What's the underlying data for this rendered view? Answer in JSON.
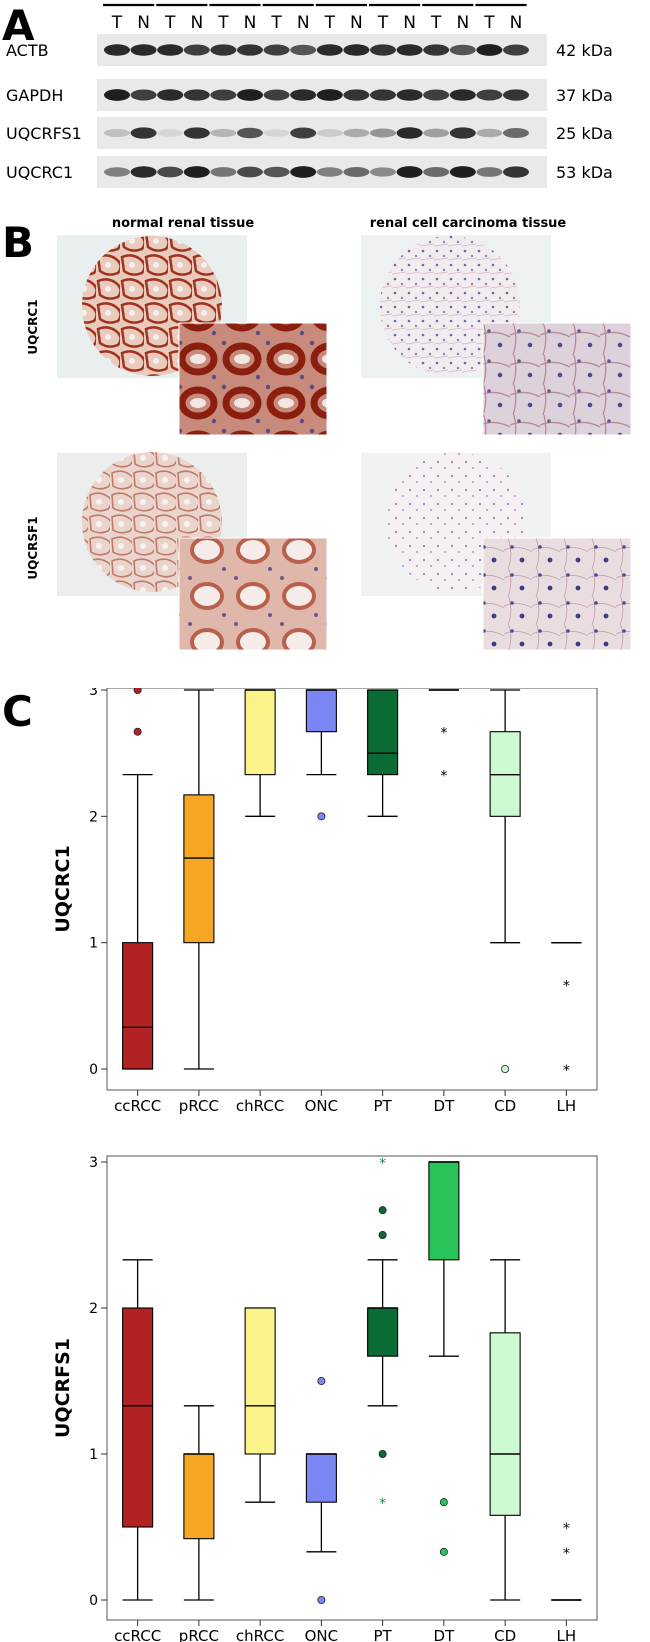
{
  "panels": {
    "a": "A",
    "b": "B",
    "c": "C"
  },
  "blot": {
    "lane_labels": [
      "T",
      "N",
      "T",
      "N",
      "T",
      "N",
      "T",
      "N",
      "T",
      "N",
      "T",
      "N",
      "T",
      "N",
      "T",
      "N"
    ],
    "rows": [
      {
        "protein": "ACTB",
        "size": "42 kDa"
      },
      {
        "protein": "GAPDH",
        "size": "37 kDa"
      },
      {
        "protein": "UQCRFS1",
        "size": "25 kDa"
      },
      {
        "protein": "UQCRC1",
        "size": "53 kDa"
      }
    ]
  },
  "ihc": {
    "col_titles": [
      "normal renal tissue",
      "renal cell carcinoma tissue"
    ],
    "row_labels": [
      "UQCRC1",
      "UQCRSF1"
    ]
  },
  "chart_data": [
    {
      "type": "box",
      "ylabel": "UQCRC1",
      "ylim": [
        0,
        3
      ],
      "yticks": [
        0,
        1,
        2,
        3
      ],
      "categories": [
        "ccRCC",
        "pRCC",
        "chRCC",
        "ONC",
        "PT",
        "DT",
        "CD",
        "LH"
      ],
      "colors": [
        "#b22222",
        "#f5a623",
        "#fbf38a",
        "#7b86f5",
        "#0a6b35",
        "#28c45a",
        "#cdf9d0",
        "#ffffff"
      ],
      "boxes": [
        {
          "min": 0,
          "q1": 0,
          "median": 0.33,
          "q3": 1,
          "max": 2.33,
          "outliers": [
            2.67,
            3
          ],
          "extremes": []
        },
        {
          "min": 0,
          "q1": 1,
          "median": 1.67,
          "q3": 2.17,
          "max": 3,
          "outliers": [],
          "extremes": []
        },
        {
          "min": 2,
          "q1": 2.33,
          "median": 3,
          "q3": 3,
          "max": 3,
          "outliers": [],
          "extremes": []
        },
        {
          "min": 2.33,
          "q1": 2.67,
          "median": 3,
          "q3": 3,
          "max": 3,
          "outliers": [
            2
          ],
          "extremes": []
        },
        {
          "min": 2,
          "q1": 2.33,
          "median": 2.5,
          "q3": 3,
          "max": 3,
          "outliers": [],
          "extremes": []
        },
        {
          "min": 3,
          "q1": 3,
          "median": 3,
          "q3": 3,
          "max": 3,
          "outliers": [],
          "extremes": [
            2.67,
            2.33
          ]
        },
        {
          "min": 1,
          "q1": 2,
          "median": 2.33,
          "q3": 2.67,
          "max": 3,
          "outliers": [
            0
          ],
          "extremes": []
        },
        {
          "min": 1,
          "q1": 1,
          "median": 1,
          "q3": 1,
          "max": 1,
          "outliers": [],
          "extremes": [
            0.67,
            0
          ]
        }
      ]
    },
    {
      "type": "box",
      "ylabel": "UQCRFS1",
      "ylim": [
        0,
        3
      ],
      "yticks": [
        0,
        1,
        2,
        3
      ],
      "categories": [
        "ccRCC",
        "pRCC",
        "chRCC",
        "ONC",
        "PT",
        "DT",
        "CD",
        "LH"
      ],
      "colors": [
        "#b22222",
        "#f5a623",
        "#fbf38a",
        "#7b86f5",
        "#0a6b35",
        "#28c45a",
        "#cdf9d0",
        "#ffffff"
      ],
      "boxes": [
        {
          "min": 0,
          "q1": 0.5,
          "median": 1.33,
          "q3": 2,
          "max": 2.33,
          "outliers": [],
          "extremes": []
        },
        {
          "min": 0,
          "q1": 0.42,
          "median": 1,
          "q3": 1,
          "max": 1.33,
          "outliers": [],
          "extremes": []
        },
        {
          "min": 0.67,
          "q1": 1,
          "median": 1.33,
          "q3": 2,
          "max": 2,
          "outliers": [],
          "extremes": []
        },
        {
          "min": 0.33,
          "q1": 0.67,
          "median": 1,
          "q3": 1,
          "max": 1,
          "outliers": [
            1.5,
            0
          ],
          "extremes": []
        },
        {
          "min": 1.33,
          "q1": 1.67,
          "median": 2,
          "q3": 2,
          "max": 2.33,
          "outliers": [
            2.5,
            2.67,
            1
          ],
          "extremes": [
            3,
            0.67
          ]
        },
        {
          "min": 1.67,
          "q1": 2.33,
          "median": 3,
          "q3": 3,
          "max": 3,
          "outliers": [
            0.67,
            0.33
          ],
          "extremes": []
        },
        {
          "min": 0,
          "q1": 0.58,
          "median": 1,
          "q3": 1.83,
          "max": 2.33,
          "outliers": [],
          "extremes": []
        },
        {
          "min": 0,
          "q1": 0,
          "median": 0,
          "q3": 0,
          "max": 0,
          "outliers": [],
          "extremes": [
            0.5,
            0.33
          ]
        }
      ]
    }
  ]
}
